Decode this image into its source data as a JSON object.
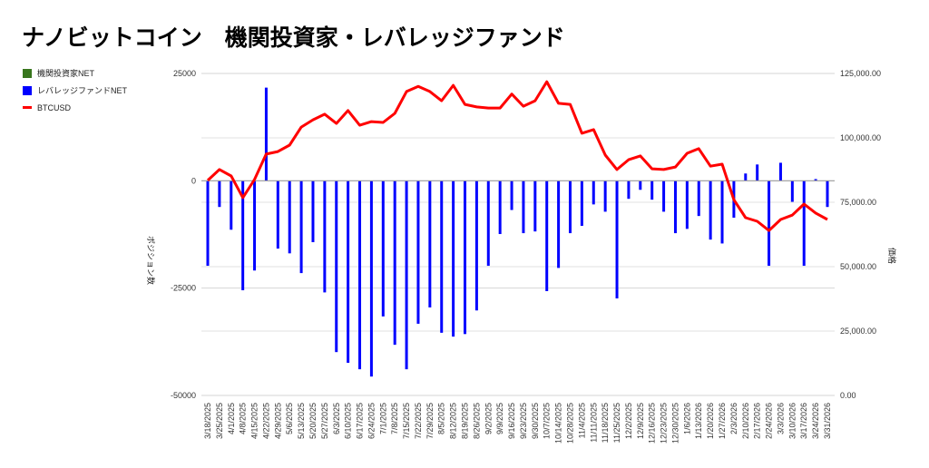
{
  "title": "ナノビットコイン　機関投資家・レバレッジファンド",
  "legend": [
    {
      "label": "機関投資家NET",
      "color": "#38761d",
      "kind": "square"
    },
    {
      "label": "レバレッジファンドNET",
      "color": "#0000ff",
      "kind": "square"
    },
    {
      "label": "BTCUSD",
      "color": "#ff0000",
      "kind": "line"
    }
  ],
  "chart_data": {
    "type": "bar+line",
    "title": "ナノビットコイン　機関投資家・レバレッジファンド",
    "ylabel_left": "ポジション数",
    "ylabel_right": "価格",
    "ylim_left": [
      -50000,
      25000
    ],
    "ylim_right": [
      0,
      125000
    ],
    "left_ticks": [
      "25000",
      "0",
      "-25000",
      "-50000"
    ],
    "left_tick_values": [
      25000,
      0,
      -25000,
      -50000
    ],
    "right_ticks": [
      "125,000.00",
      "100,000.00",
      "75,000.00",
      "50,000.00",
      "25,000.00",
      "0.00"
    ],
    "right_tick_values": [
      125000,
      100000,
      75000,
      50000,
      25000,
      0
    ],
    "grid": true,
    "legend_position": "left",
    "categories": [
      "3/18/2025",
      "3/25/2025",
      "4/1/2025",
      "4/8/2025",
      "4/15/2025",
      "4/22/2025",
      "4/29/2025",
      "5/6/2025",
      "5/13/2025",
      "5/20/2025",
      "5/27/2025",
      "6/3/2025",
      "6/10/2025",
      "6/17/2025",
      "6/24/2025",
      "7/1/2025",
      "7/8/2025",
      "7/15/2025",
      "7/22/2025",
      "7/29/2025",
      "8/5/2025",
      "8/12/2025",
      "8/19/2025",
      "8/26/2025",
      "9/2/2025",
      "9/9/2025",
      "9/16/2025",
      "9/23/2025",
      "9/30/2025",
      "10/7/2025",
      "10/14/2025",
      "10/28/2025",
      "11/4/2025",
      "11/11/2025",
      "11/18/2025",
      "11/25/2025",
      "12/2/2025",
      "12/9/2025",
      "12/16/2025",
      "12/23/2025",
      "12/30/2025",
      "1/6/2026",
      "1/13/2026",
      "1/20/2026",
      "1/27/2026",
      "2/3/2026",
      "2/10/2026",
      "2/17/2026",
      "2/24/2026",
      "3/3/2026",
      "3/10/2026",
      "3/17/2026",
      "3/24/2026",
      "3/31/2026"
    ],
    "series": [
      {
        "name": "機関投資家NET",
        "axis": "left",
        "type": "bar",
        "color": "#38761d",
        "values": [
          0,
          0,
          0,
          0,
          0,
          0,
          0,
          0,
          0,
          0,
          0,
          0,
          0,
          0,
          0,
          0,
          0,
          0,
          0,
          0,
          0,
          0,
          0,
          0,
          0,
          0,
          0,
          0,
          0,
          0,
          0,
          0,
          0,
          0,
          0,
          0,
          0,
          0,
          0,
          0,
          0,
          0,
          0,
          0,
          0,
          0,
          0,
          0,
          0,
          0,
          0,
          0,
          0,
          0
        ]
      },
      {
        "name": "レバレッジファンドNET",
        "axis": "left",
        "type": "bar",
        "color": "#0000ff",
        "values": [
          -19800,
          -6100,
          -11400,
          -25500,
          -20900,
          21700,
          -15800,
          -16900,
          -21500,
          -14300,
          -26000,
          -39900,
          -42400,
          -43900,
          -45600,
          -31600,
          -38200,
          -43900,
          -33300,
          -29500,
          -35400,
          -36300,
          -35700,
          -30200,
          -19800,
          -12400,
          -6800,
          -12200,
          -11800,
          -25700,
          -20300,
          -12200,
          -10500,
          -5500,
          -7200,
          -27400,
          -4200,
          -2100,
          -4400,
          -7200,
          -12200,
          -11200,
          -8200,
          -13700,
          -14600,
          -8600,
          1700,
          3800,
          -19800,
          4200,
          -4900,
          -19800,
          400,
          -6100
        ]
      },
      {
        "name": "BTCUSD",
        "axis": "right",
        "type": "line",
        "color": "#ff0000",
        "values": [
          83500,
          87700,
          85200,
          76800,
          83800,
          93700,
          94700,
          97200,
          104200,
          107000,
          109200,
          105600,
          110600,
          104900,
          106300,
          106000,
          109500,
          118000,
          120000,
          118000,
          114400,
          120400,
          113000,
          112000,
          111600,
          111600,
          117000,
          112300,
          114400,
          121800,
          113400,
          113000,
          101800,
          103200,
          93300,
          87700,
          91500,
          93000,
          88000,
          87700,
          88700,
          94000,
          95800,
          89000,
          89800,
          76000,
          69000,
          67600,
          64000,
          68300,
          70000,
          74300,
          70800,
          68300
        ]
      }
    ]
  }
}
